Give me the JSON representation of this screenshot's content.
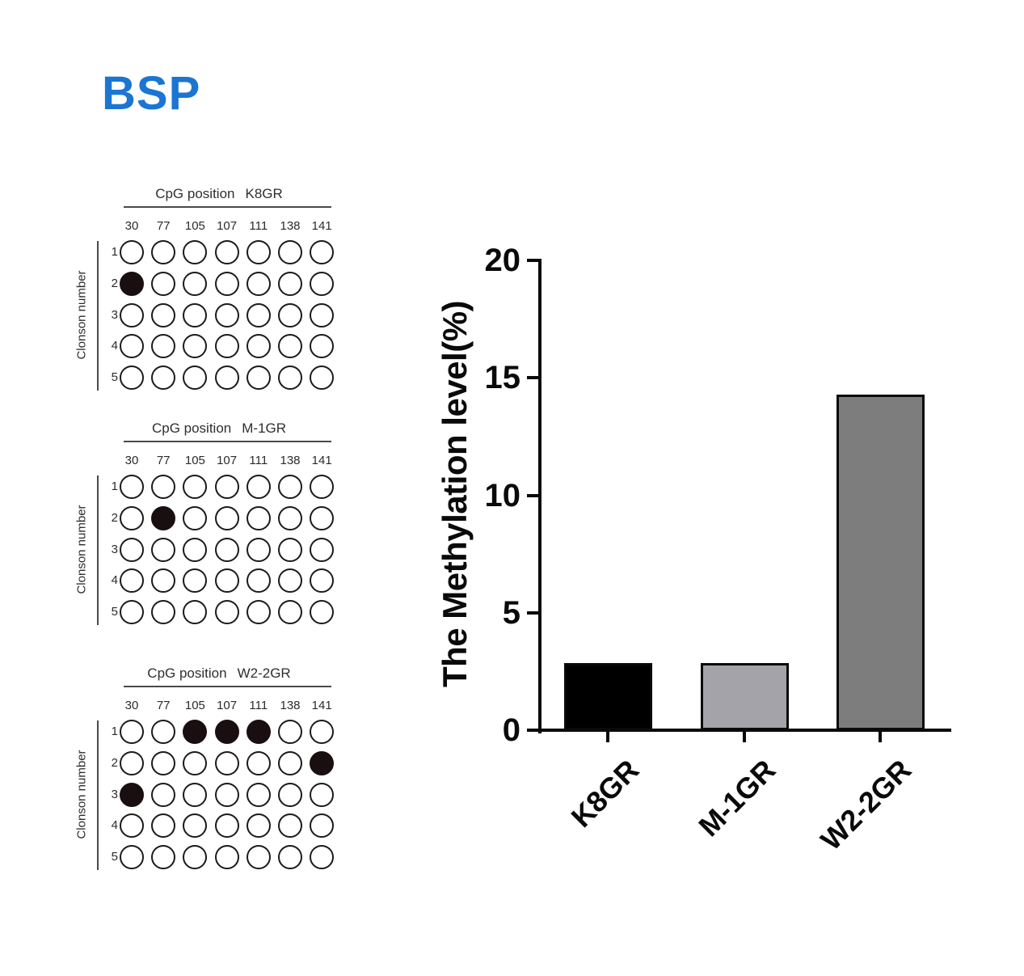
{
  "figure": {
    "title": "BSP",
    "title_color": "#1B75D2"
  },
  "dot_matrix_meta": {
    "title_prefix": "CpG position",
    "ylabel": "Clonson number",
    "columns": [
      "30",
      "77",
      "105",
      "107",
      "111",
      "138",
      "141"
    ],
    "rows": [
      "1",
      "2",
      "3",
      "4",
      "5"
    ],
    "filled_color": "#190f11",
    "open_color": "#ffffff"
  },
  "chart_data": [
    {
      "type": "bar",
      "categories": [
        "K8GR",
        "M-1GR",
        "W2-2GR"
      ],
      "values": [
        2.86,
        2.86,
        14.29
      ],
      "title": "",
      "xlabel": "",
      "ylabel": "The Methylation level(%)",
      "ylim": [
        0,
        20
      ],
      "yticks": [
        0,
        5,
        10,
        15,
        20
      ],
      "ytick_labels": [
        "0",
        "5",
        "10",
        "15",
        "20"
      ],
      "bar_colors": [
        "#000000",
        "#A4A3A9",
        "#7D7D7D"
      ],
      "grid": false,
      "legend": null
    },
    {
      "type": "heatmap",
      "name": "K8GR",
      "title": "CpG position  K8GR",
      "x_categories": [
        "30",
        "77",
        "105",
        "107",
        "111",
        "138",
        "141"
      ],
      "y_categories": [
        "1",
        "2",
        "3",
        "4",
        "5"
      ],
      "ylabel": "Clonson number",
      "values": [
        [
          0,
          0,
          0,
          0,
          0,
          0,
          0
        ],
        [
          1,
          0,
          0,
          0,
          0,
          0,
          0
        ],
        [
          0,
          0,
          0,
          0,
          0,
          0,
          0
        ],
        [
          0,
          0,
          0,
          0,
          0,
          0,
          0
        ],
        [
          0,
          0,
          0,
          0,
          0,
          0,
          0
        ]
      ]
    },
    {
      "type": "heatmap",
      "name": "M-1GR",
      "title": "CpG position  M-1GR",
      "x_categories": [
        "30",
        "77",
        "105",
        "107",
        "111",
        "138",
        "141"
      ],
      "y_categories": [
        "1",
        "2",
        "3",
        "4",
        "5"
      ],
      "ylabel": "Clonson number",
      "values": [
        [
          0,
          0,
          0,
          0,
          0,
          0,
          0
        ],
        [
          0,
          1,
          0,
          0,
          0,
          0,
          0
        ],
        [
          0,
          0,
          0,
          0,
          0,
          0,
          0
        ],
        [
          0,
          0,
          0,
          0,
          0,
          0,
          0
        ],
        [
          0,
          0,
          0,
          0,
          0,
          0,
          0
        ]
      ]
    },
    {
      "type": "heatmap",
      "name": "W2-2GR",
      "title": "CpG position  W2-2GR",
      "x_categories": [
        "30",
        "77",
        "105",
        "107",
        "111",
        "138",
        "141"
      ],
      "y_categories": [
        "1",
        "2",
        "3",
        "4",
        "5"
      ],
      "ylabel": "Clonson number",
      "values": [
        [
          0,
          0,
          1,
          1,
          1,
          0,
          0
        ],
        [
          0,
          0,
          0,
          0,
          0,
          0,
          1
        ],
        [
          1,
          0,
          0,
          0,
          0,
          0,
          0
        ],
        [
          0,
          0,
          0,
          0,
          0,
          0,
          0
        ],
        [
          0,
          0,
          0,
          0,
          0,
          0,
          0
        ]
      ]
    }
  ]
}
